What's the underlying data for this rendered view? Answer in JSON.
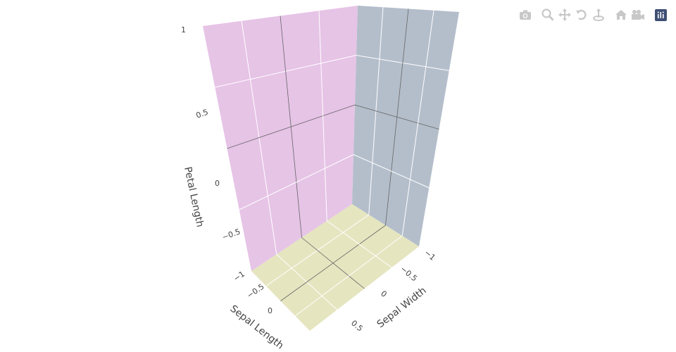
{
  "chart_data": {
    "type": "scatter3d",
    "title": "",
    "series": [],
    "axes": {
      "x": {
        "title": "Sepal Length",
        "range": [
          -1,
          1
        ],
        "ticks": [
          "−1",
          "−0.5",
          "0",
          "0.5"
        ],
        "bgcolor": "#e5e5c0"
      },
      "y": {
        "title": "Sepal Width",
        "range": [
          -1,
          1
        ],
        "ticks": [
          "−1",
          "−0.5",
          "0",
          "0.5"
        ],
        "bgcolor": "#b4becb"
      },
      "z": {
        "title": "Petal Length",
        "range": [
          -1,
          1
        ],
        "ticks": [
          "−0.5",
          "0",
          "0.5",
          "1"
        ],
        "bgcolor": "#e6c4e6"
      }
    },
    "grid": true
  },
  "modebar": {
    "buttons": [
      {
        "name": "camera-icon"
      },
      {
        "name": "zoom-icon"
      },
      {
        "name": "pan-icon"
      },
      {
        "name": "orbit-icon"
      },
      {
        "name": "turntable-icon"
      },
      {
        "name": "home-icon"
      },
      {
        "name": "video-camera-icon"
      },
      {
        "name": "plotly-logo-icon"
      }
    ]
  }
}
